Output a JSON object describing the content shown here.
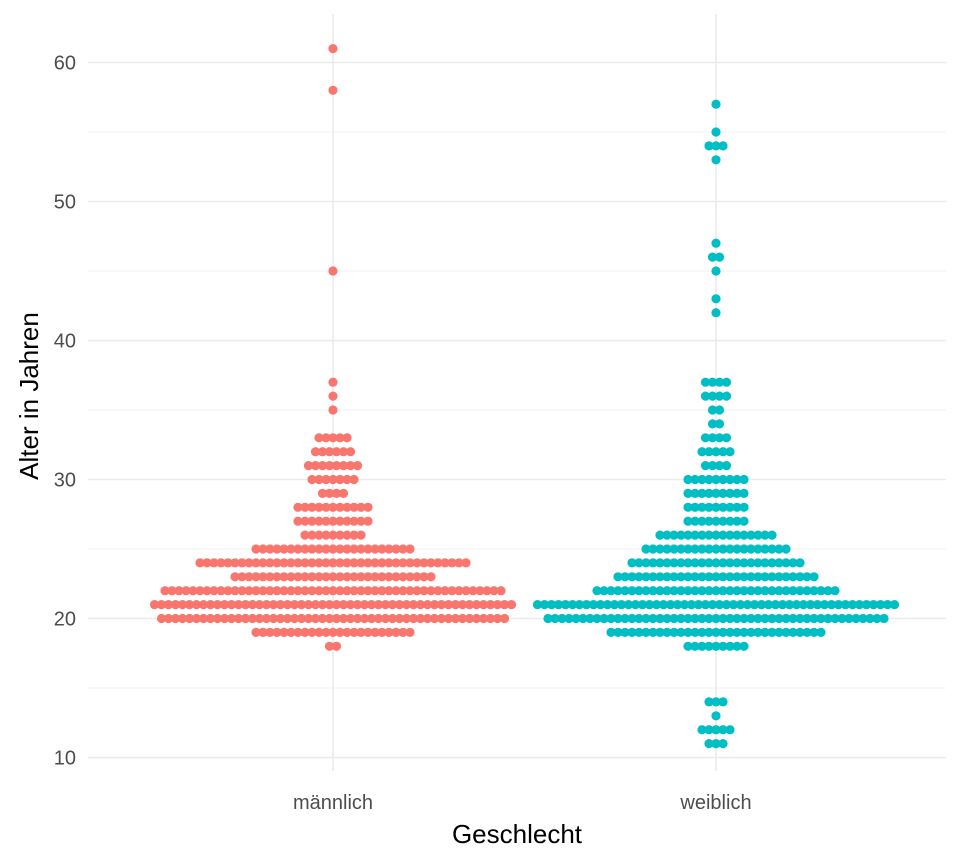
{
  "chart_data": {
    "type": "scatter",
    "subtype": "beeswarm",
    "title": "",
    "xlabel": "Geschlecht",
    "ylabel": "Alter in Jahren",
    "categories": [
      "männlich",
      "weiblich"
    ],
    "ylim": [
      9,
      63
    ],
    "y_ticks": [
      10,
      20,
      30,
      40,
      50,
      60
    ],
    "grid": true,
    "legend": "none",
    "series": [
      {
        "category": "männlich",
        "color": "#F8766D",
        "counts": [
          {
            "age": 18,
            "n": 2
          },
          {
            "age": 19,
            "n": 23
          },
          {
            "age": 20,
            "n": 50
          },
          {
            "age": 21,
            "n": 52
          },
          {
            "age": 22,
            "n": 49
          },
          {
            "age": 23,
            "n": 29
          },
          {
            "age": 24,
            "n": 39
          },
          {
            "age": 25,
            "n": 23
          },
          {
            "age": 26,
            "n": 9
          },
          {
            "age": 27,
            "n": 11
          },
          {
            "age": 28,
            "n": 11
          },
          {
            "age": 29,
            "n": 4
          },
          {
            "age": 30,
            "n": 7
          },
          {
            "age": 31,
            "n": 8
          },
          {
            "age": 32,
            "n": 6
          },
          {
            "age": 33,
            "n": 5
          },
          {
            "age": 35,
            "n": 1
          },
          {
            "age": 36,
            "n": 1
          },
          {
            "age": 37,
            "n": 1
          },
          {
            "age": 45,
            "n": 1
          },
          {
            "age": 58,
            "n": 1
          },
          {
            "age": 61,
            "n": 1
          }
        ]
      },
      {
        "category": "weiblich",
        "color": "#00BFC4",
        "counts": [
          {
            "age": 11,
            "n": 3
          },
          {
            "age": 12,
            "n": 5
          },
          {
            "age": 13,
            "n": 1
          },
          {
            "age": 14,
            "n": 3
          },
          {
            "age": 18,
            "n": 9
          },
          {
            "age": 19,
            "n": 31
          },
          {
            "age": 20,
            "n": 49
          },
          {
            "age": 21,
            "n": 52
          },
          {
            "age": 22,
            "n": 35
          },
          {
            "age": 23,
            "n": 29
          },
          {
            "age": 24,
            "n": 25
          },
          {
            "age": 25,
            "n": 21
          },
          {
            "age": 26,
            "n": 17
          },
          {
            "age": 27,
            "n": 9
          },
          {
            "age": 28,
            "n": 9
          },
          {
            "age": 29,
            "n": 9
          },
          {
            "age": 30,
            "n": 9
          },
          {
            "age": 31,
            "n": 4
          },
          {
            "age": 32,
            "n": 5
          },
          {
            "age": 33,
            "n": 4
          },
          {
            "age": 34,
            "n": 2
          },
          {
            "age": 35,
            "n": 2
          },
          {
            "age": 36,
            "n": 4
          },
          {
            "age": 37,
            "n": 4
          },
          {
            "age": 42,
            "n": 1
          },
          {
            "age": 43,
            "n": 1
          },
          {
            "age": 45,
            "n": 1
          },
          {
            "age": 46,
            "n": 2
          },
          {
            "age": 47,
            "n": 1
          },
          {
            "age": 53,
            "n": 1
          },
          {
            "age": 54,
            "n": 3
          },
          {
            "age": 55,
            "n": 1
          },
          {
            "age": 57,
            "n": 1
          }
        ]
      }
    ]
  }
}
